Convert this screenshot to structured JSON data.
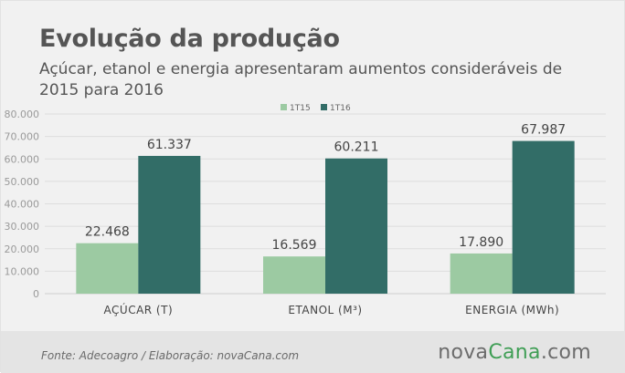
{
  "header": {
    "title": "Evolução da produção",
    "subtitle": "Açúcar, etanol e energia apresentaram aumentos consideráveis de 2015 para 2016"
  },
  "chart_data": {
    "type": "bar",
    "categories": [
      "AÇÚCAR (T)",
      "ETANOL (M³)",
      "ENERGIA (MWh)"
    ],
    "series": [
      {
        "name": "1T15",
        "values": [
          22468,
          16569,
          17890
        ],
        "labels": [
          "22.468",
          "16.569",
          "17.890"
        ],
        "color": "#9ccaa2"
      },
      {
        "name": "1T16",
        "values": [
          61337,
          60211,
          67987
        ],
        "labels": [
          "61.337",
          "60.211",
          "67.987"
        ],
        "color": "#326d67"
      }
    ],
    "yticks": [
      "0",
      "10.000",
      "20.000",
      "30.000",
      "40.000",
      "50.000",
      "60.000",
      "70.000",
      "80.000"
    ],
    "ylim": [
      0,
      80000
    ],
    "grid": true,
    "legend_position": "top"
  },
  "footer": {
    "source": "Fonte: Adecoagro / Elaboração: novaCana.com",
    "logo": {
      "nova": "nova",
      "cana": "Cana",
      "dom": ".com"
    }
  }
}
